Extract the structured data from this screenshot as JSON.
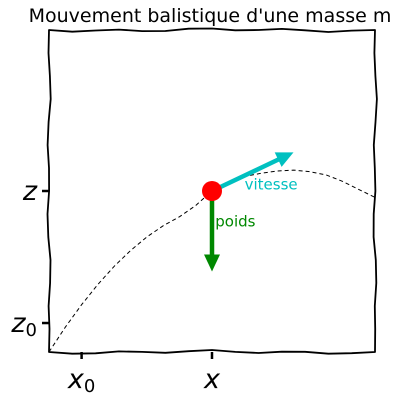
{
  "chart_data": {
    "type": "line",
    "style": "xkcd",
    "title": "Mouvement balistique d'une masse m",
    "xlabel": "",
    "ylabel": "",
    "xlim": [
      0,
      10
    ],
    "ylim": [
      0,
      10
    ],
    "grid": false,
    "x_ticks": [
      {
        "value": 1.0,
        "label": "x",
        "sub": "0"
      },
      {
        "value": 5.0,
        "label": "x",
        "sub": ""
      }
    ],
    "y_ticks": [
      {
        "value": 0.9,
        "label": "z",
        "sub": "0"
      },
      {
        "value": 5.0,
        "label": "z",
        "sub": ""
      }
    ],
    "trajectory": {
      "style": "dashed",
      "color": "#000000",
      "x": [
        0.0,
        0.5,
        1.0,
        1.5,
        2.0,
        2.5,
        3.0,
        3.5,
        4.0,
        4.5,
        5.0,
        5.5,
        6.0,
        6.5,
        7.0,
        7.5,
        8.0,
        8.5,
        9.0,
        9.5,
        10.0
      ],
      "y": [
        0.0,
        0.77,
        1.47,
        2.1,
        2.66,
        3.15,
        3.57,
        3.92,
        4.2,
        4.55,
        5.0,
        5.25,
        5.45,
        5.55,
        5.62,
        5.65,
        5.6,
        5.5,
        5.3,
        5.05,
        4.8
      ]
    },
    "mass": {
      "x": 5.0,
      "y": 5.0,
      "color": "#ff0000"
    },
    "vectors": [
      {
        "label": "vitesse",
        "color": "#00c0c0",
        "from": [
          5.0,
          5.0
        ],
        "to": [
          7.5,
          6.2
        ],
        "label_at": [
          6.0,
          5.05
        ]
      },
      {
        "label": "poids",
        "color": "#008800",
        "from": [
          5.0,
          5.0
        ],
        "to": [
          5.0,
          2.5
        ],
        "label_at": [
          5.1,
          3.9
        ]
      }
    ]
  }
}
